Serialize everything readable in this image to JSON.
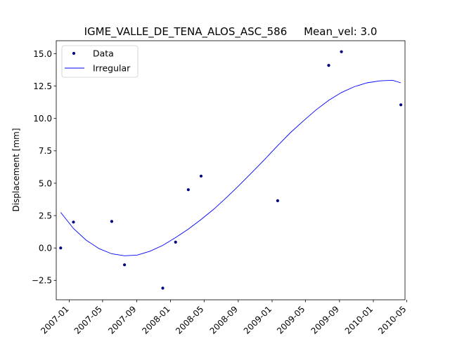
{
  "chart_data": {
    "type": "scatter",
    "title": "IGME_VALLE_DE_TENA_ALOS_ASC_586     Mean_vel: 3.0",
    "xlabel": "",
    "ylabel": "Displacement [mm]",
    "xlim": [
      "2006-11-15",
      "2010-04-25"
    ],
    "ylim": [
      -4.0,
      16.0
    ],
    "x_ticks": [
      "2007-01",
      "2007-05",
      "2007-09",
      "2008-01",
      "2008-05",
      "2008-09",
      "2009-01",
      "2009-05",
      "2009-09",
      "2010-01",
      "2010-05"
    ],
    "y_ticks": [
      -2.5,
      0.0,
      2.5,
      5.0,
      7.5,
      10.0,
      12.5,
      15.0
    ],
    "y_tick_labels": [
      "−2.5",
      "0.0",
      "2.5",
      "5.0",
      "7.5",
      "10.0",
      "12.5",
      "15.0"
    ],
    "grid": false,
    "legend": {
      "placement": "top-left",
      "entries": [
        "Data",
        "Irregular"
      ]
    },
    "series": [
      {
        "name": "Data",
        "kind": "points",
        "color": "#000080",
        "x": [
          "2006-12-01",
          "2007-01-16",
          "2007-06-03",
          "2007-07-19",
          "2007-12-04",
          "2008-01-19",
          "2008-03-05",
          "2008-04-20",
          "2009-01-21",
          "2009-07-24",
          "2009-09-08",
          "2010-04-10"
        ],
        "y": [
          0.0,
          2.0,
          2.05,
          -1.3,
          -3.1,
          0.45,
          4.5,
          5.55,
          3.65,
          14.1,
          15.15,
          11.05
        ]
      },
      {
        "name": "Irregular",
        "kind": "line",
        "color": "#0000ff",
        "x": [
          "2006-12-01",
          "2007-01-16",
          "2007-03-03",
          "2007-04-18",
          "2007-06-03",
          "2007-07-19",
          "2007-09-03",
          "2007-10-19",
          "2007-12-04",
          "2008-01-19",
          "2008-03-05",
          "2008-04-20",
          "2008-06-05",
          "2008-07-21",
          "2008-09-05",
          "2008-10-21",
          "2008-12-06",
          "2009-01-21",
          "2009-03-08",
          "2009-04-23",
          "2009-06-08",
          "2009-07-24",
          "2009-09-08",
          "2009-10-24",
          "2009-12-09",
          "2010-01-24",
          "2010-03-11",
          "2010-04-10"
        ],
        "y": [
          2.75,
          1.5,
          0.6,
          -0.05,
          -0.45,
          -0.6,
          -0.55,
          -0.25,
          0.2,
          0.8,
          1.45,
          2.2,
          3.0,
          3.9,
          4.85,
          5.85,
          6.85,
          7.9,
          8.9,
          9.8,
          10.65,
          11.4,
          12.0,
          12.45,
          12.75,
          12.9,
          12.95,
          12.75
        ]
      }
    ]
  }
}
